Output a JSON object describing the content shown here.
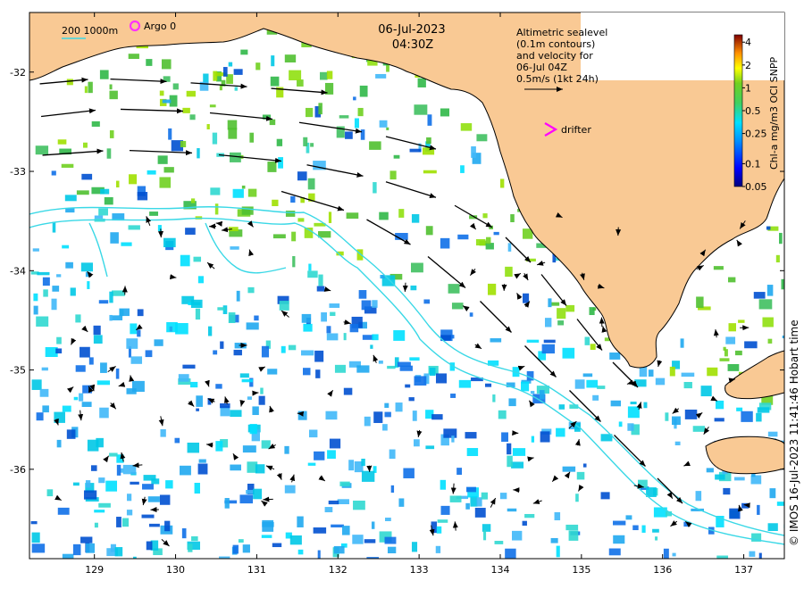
{
  "header": {
    "date": "06-Jul-2023",
    "time": "04:30Z"
  },
  "legend": {
    "isobath_label": "200  1000m",
    "argo_label": "Argo 0",
    "drifter_label": "drifter",
    "sealevel_note": [
      "Altimetric sealevel",
      "(0.1m contours)",
      "and velocity for",
      "06-Jul 04Z",
      "0.5m/s (1kt 24h)"
    ]
  },
  "colorbar": {
    "title": "Chl-a mg/m3 OCI SNPP",
    "ticks": [
      "4",
      "2",
      "1",
      "0.5",
      "0.25",
      "0.1",
      "0.05"
    ]
  },
  "axes": {
    "x_ticks": [
      "129",
      "130",
      "131",
      "132",
      "133",
      "134",
      "135",
      "136",
      "137"
    ],
    "y_ticks": [
      "-32",
      "-33",
      "-34",
      "-35",
      "-36"
    ]
  },
  "credit": "© IMOS 16-Jul-2023 11:41:46 Hobart time",
  "colors": {
    "land": "#f9c994",
    "ocean": "#ffffff",
    "isobath": "#3ad8e6",
    "argo": "#ff33ff",
    "drifter": "#ff00ff",
    "vector": "#000000"
  },
  "chart_data": {
    "type": "map",
    "title": "06-Jul-2023 04:30Z",
    "xlim": [
      128.2,
      137.5
    ],
    "ylim": [
      -36.9,
      -31.4
    ],
    "x_ticks": [
      129,
      130,
      131,
      132,
      133,
      134,
      135,
      136,
      137
    ],
    "y_ticks": [
      -32,
      -33,
      -34,
      -35,
      -36
    ],
    "colorbar_scale": "log",
    "colorbar_range": [
      0.05,
      5
    ],
    "colorbar_ticks": [
      0.05,
      0.1,
      0.25,
      0.5,
      1,
      2,
      4
    ]
  }
}
